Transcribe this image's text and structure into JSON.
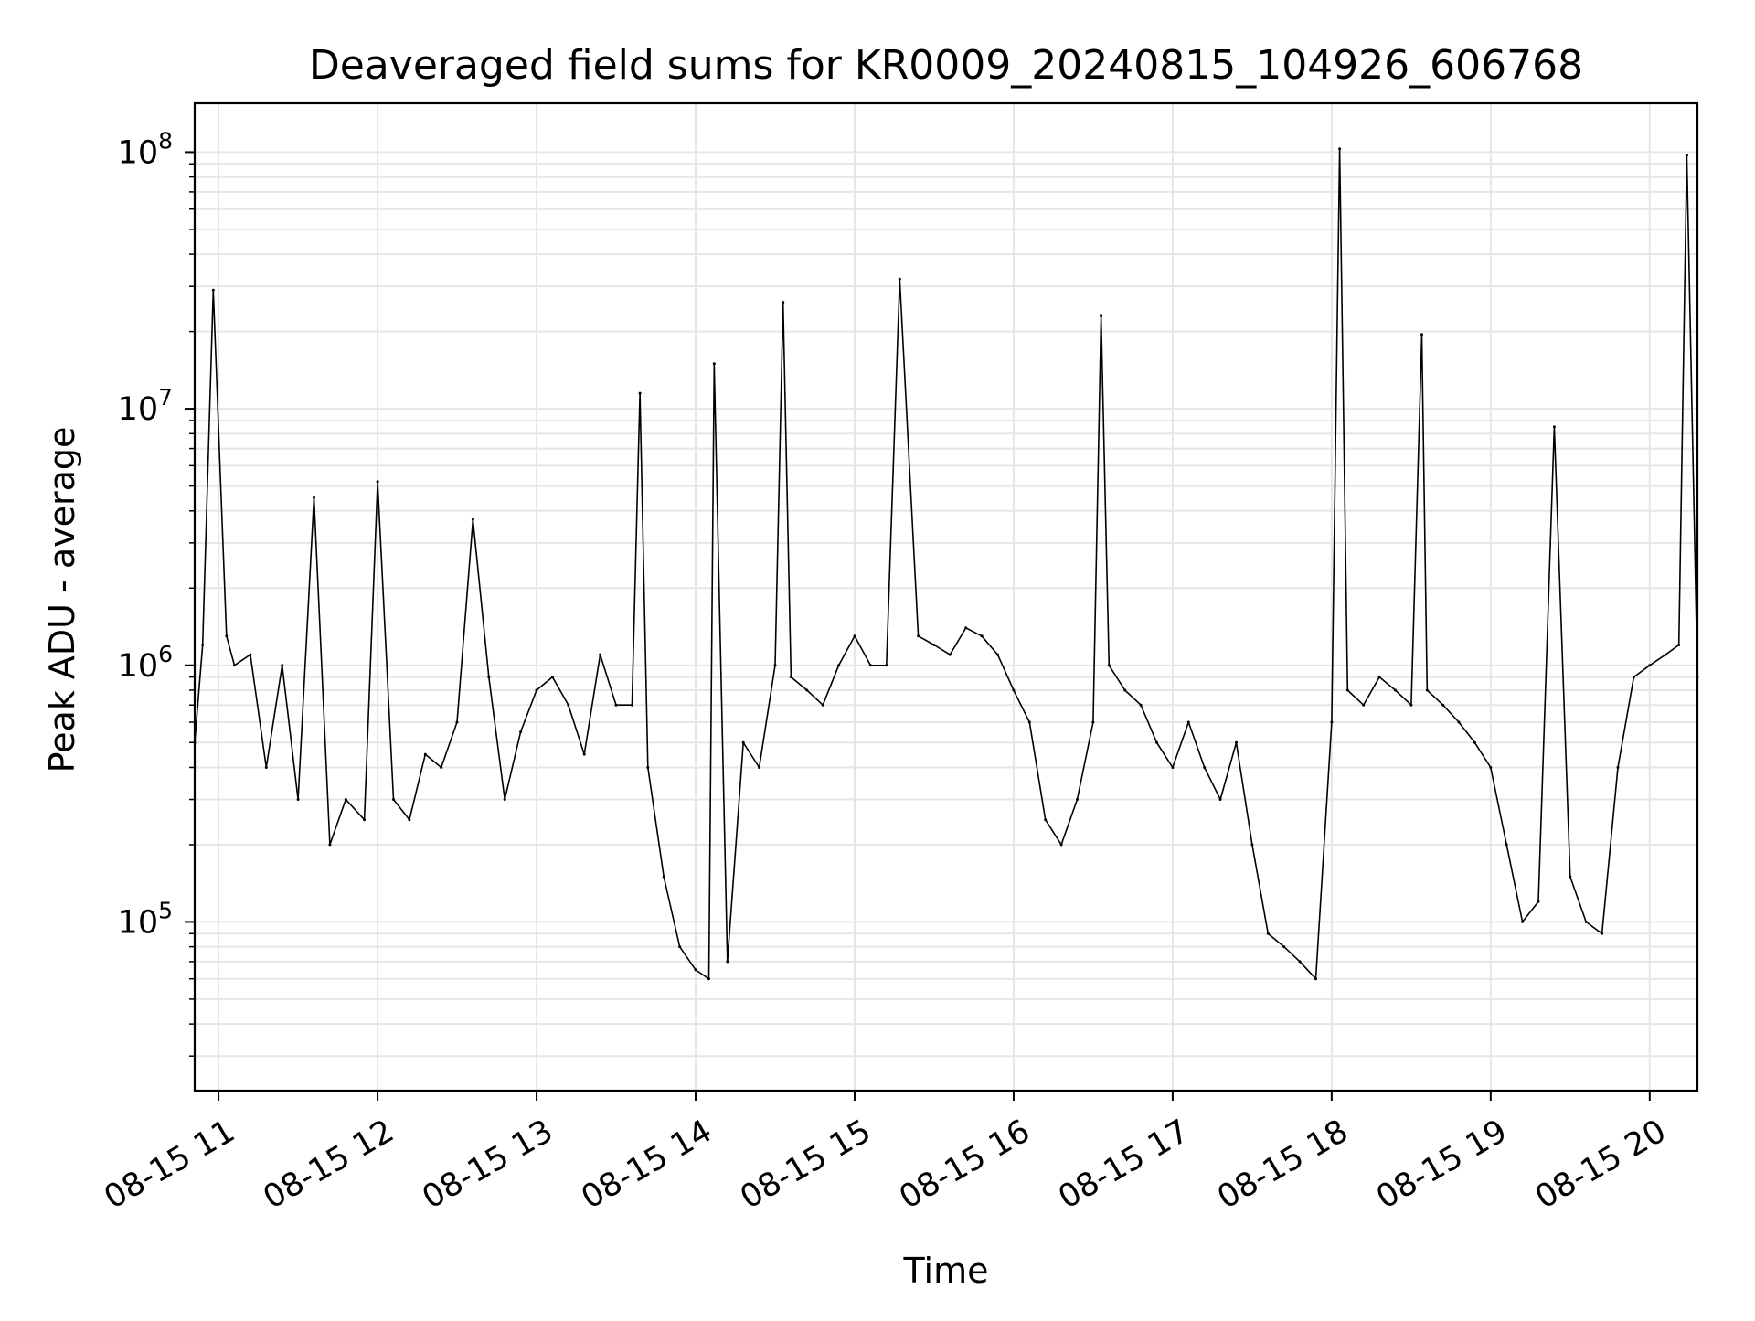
{
  "chart_data": {
    "type": "line",
    "title": "Deaveraged field sums for KR0009_20240815_104926_606768",
    "xlabel": "Time",
    "ylabel": "Peak ADU - average",
    "yscale": "log",
    "grid": true,
    "x_tick_labels": [
      "08-15 11",
      "08-15 12",
      "08-15 13",
      "08-15 14",
      "08-15 15",
      "08-15 16",
      "08-15 17",
      "08-15 18",
      "08-15 19",
      "08-15 20"
    ],
    "y_tick_labels": [
      {
        "base": "10",
        "exp": "5"
      },
      {
        "base": "10",
        "exp": "6"
      },
      {
        "base": "10",
        "exp": "7"
      },
      {
        "base": "10",
        "exp": "8"
      }
    ],
    "y_tick_values": [
      100000,
      1000000,
      10000000,
      100000000
    ],
    "xlim": [
      "2024-08-15 10:51",
      "2024-08-15 20:18"
    ],
    "ylim": [
      22000,
      155000000
    ],
    "series": [
      {
        "color": "#000000",
        "x": [
          "2024-08-15 10:51",
          "2024-08-15 10:54",
          "2024-08-15 10:58",
          "2024-08-15 11:03",
          "2024-08-15 11:06",
          "2024-08-15 11:12",
          "2024-08-15 11:18",
          "2024-08-15 11:24",
          "2024-08-15 11:30",
          "2024-08-15 11:36",
          "2024-08-15 11:42",
          "2024-08-15 11:48",
          "2024-08-15 11:55",
          "2024-08-15 12:00",
          "2024-08-15 12:06",
          "2024-08-15 12:12",
          "2024-08-15 12:18",
          "2024-08-15 12:24",
          "2024-08-15 12:30",
          "2024-08-15 12:36",
          "2024-08-15 12:42",
          "2024-08-15 12:48",
          "2024-08-15 12:54",
          "2024-08-15 13:00",
          "2024-08-15 13:06",
          "2024-08-15 13:12",
          "2024-08-15 13:18",
          "2024-08-15 13:24",
          "2024-08-15 13:30",
          "2024-08-15 13:36",
          "2024-08-15 13:39",
          "2024-08-15 13:42",
          "2024-08-15 13:48",
          "2024-08-15 13:54",
          "2024-08-15 14:00",
          "2024-08-15 14:05",
          "2024-08-15 14:07",
          "2024-08-15 14:12",
          "2024-08-15 14:18",
          "2024-08-15 14:24",
          "2024-08-15 14:30",
          "2024-08-15 14:33",
          "2024-08-15 14:36",
          "2024-08-15 14:42",
          "2024-08-15 14:48",
          "2024-08-15 14:54",
          "2024-08-15 15:00",
          "2024-08-15 15:06",
          "2024-08-15 15:12",
          "2024-08-15 15:17",
          "2024-08-15 15:24",
          "2024-08-15 15:30",
          "2024-08-15 15:36",
          "2024-08-15 15:42",
          "2024-08-15 15:48",
          "2024-08-15 15:54",
          "2024-08-15 16:00",
          "2024-08-15 16:06",
          "2024-08-15 16:12",
          "2024-08-15 16:18",
          "2024-08-15 16:24",
          "2024-08-15 16:30",
          "2024-08-15 16:33",
          "2024-08-15 16:36",
          "2024-08-15 16:42",
          "2024-08-15 16:48",
          "2024-08-15 16:54",
          "2024-08-15 17:00",
          "2024-08-15 17:06",
          "2024-08-15 17:12",
          "2024-08-15 17:18",
          "2024-08-15 17:24",
          "2024-08-15 17:30",
          "2024-08-15 17:36",
          "2024-08-15 17:42",
          "2024-08-15 17:48",
          "2024-08-15 17:54",
          "2024-08-15 18:00",
          "2024-08-15 18:03",
          "2024-08-15 18:06",
          "2024-08-15 18:12",
          "2024-08-15 18:18",
          "2024-08-15 18:24",
          "2024-08-15 18:30",
          "2024-08-15 18:34",
          "2024-08-15 18:36",
          "2024-08-15 18:42",
          "2024-08-15 18:48",
          "2024-08-15 18:54",
          "2024-08-15 19:00",
          "2024-08-15 19:06",
          "2024-08-15 19:12",
          "2024-08-15 19:18",
          "2024-08-15 19:24",
          "2024-08-15 19:30",
          "2024-08-15 19:36",
          "2024-08-15 19:42",
          "2024-08-15 19:48",
          "2024-08-15 19:54",
          "2024-08-15 20:00",
          "2024-08-15 20:06",
          "2024-08-15 20:11",
          "2024-08-15 20:14",
          "2024-08-15 20:18"
        ],
        "y": [
          500000,
          1200000,
          29000000,
          1300000,
          1000000,
          1100000,
          400000,
          1000000,
          300000,
          4500000,
          200000,
          300000,
          250000,
          5200000,
          300000,
          250000,
          450000,
          400000,
          600000,
          3700000,
          900000,
          300000,
          550000,
          800000,
          900000,
          700000,
          450000,
          1100000,
          700000,
          700000,
          11500000,
          400000,
          150000,
          80000,
          65000,
          60000,
          15000000,
          70000,
          500000,
          400000,
          1000000,
          26000000,
          900000,
          800000,
          700000,
          1000000,
          1300000,
          1000000,
          1000000,
          32000000,
          1300000,
          1200000,
          1100000,
          1400000,
          1300000,
          1100000,
          800000,
          600000,
          250000,
          200000,
          300000,
          600000,
          23000000,
          1000000,
          800000,
          700000,
          500000,
          400000,
          600000,
          400000,
          300000,
          500000,
          200000,
          90000,
          80000,
          70000,
          60000,
          600000,
          103000000,
          800000,
          700000,
          900000,
          800000,
          700000,
          19500000,
          800000,
          700000,
          600000,
          500000,
          400000,
          200000,
          100000,
          120000,
          8500000,
          150000,
          100000,
          90000,
          400000,
          900000,
          1000000,
          1100000,
          1200000,
          97000000,
          900000
        ]
      }
    ]
  }
}
